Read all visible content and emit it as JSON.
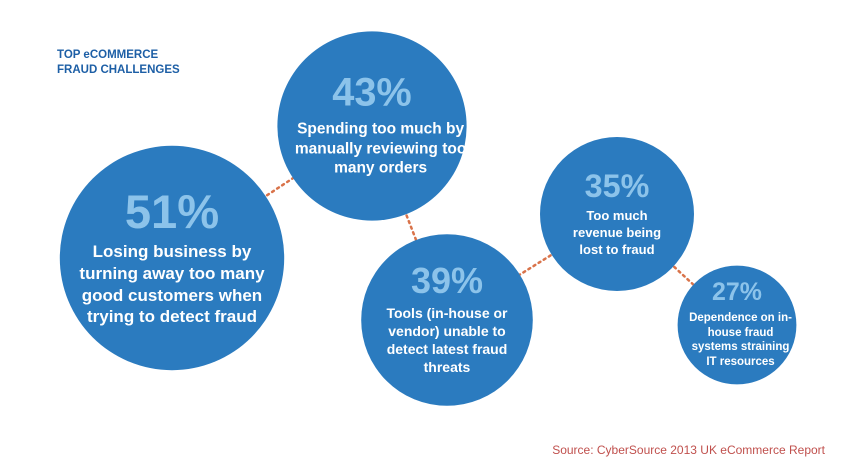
{
  "chart_data": {
    "type": "bubble",
    "title": "TOP eCOMMERCE FRAUD CHALLENGES",
    "categories": [
      "Losing business by turning away too many good customers when trying to detect fraud",
      "Spending too much by manually reviewing too many orders",
      "Tools (in-house or vendor) unable to detect latest fraud threats",
      "Too much revenue being lost to fraud",
      "Dependence on in-house fraud systems straining IT resources"
    ],
    "values": [
      51,
      43,
      39,
      35,
      27
    ],
    "value_labels": [
      "51%",
      "43%",
      "39%",
      "35%",
      "27%"
    ],
    "color": "#2b7bbf",
    "value_label_color": "#8cc3ea",
    "connector_color": "#d9734a",
    "source": "Source: CyberSource 2013 UK eCommerce Report"
  }
}
